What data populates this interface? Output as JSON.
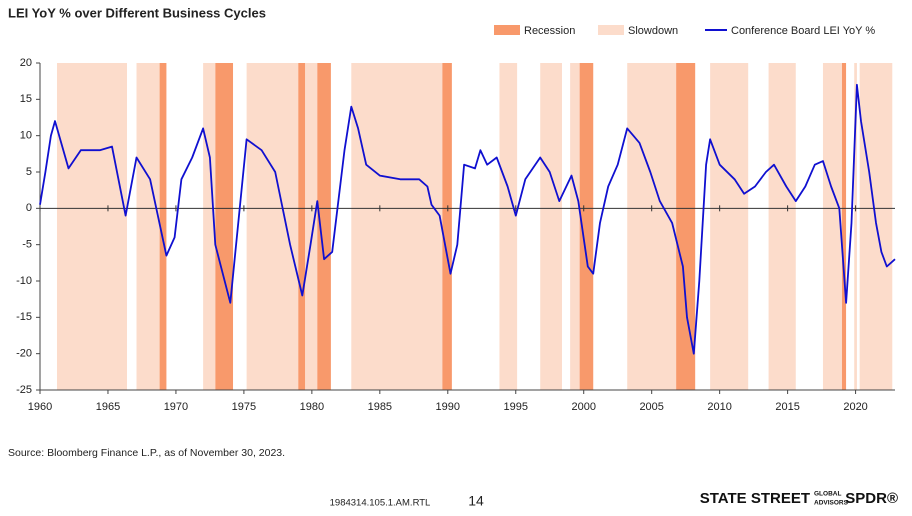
{
  "chart_data": {
    "type": "line",
    "title": "LEI YoY % over Different Business Cycles",
    "source": "Source: Bloomberg Finance L.P., as of November 30, 2023.",
    "xlim": [
      1960,
      2022.9
    ],
    "xticks": [
      1960,
      1965,
      1970,
      1975,
      1980,
      1985,
      1990,
      1995,
      2000,
      2005,
      2010,
      2015,
      2020
    ],
    "ylim": [
      -25,
      20
    ],
    "yticks": [
      -25,
      -20,
      -15,
      -10,
      -5,
      0,
      5,
      10,
      15,
      20
    ],
    "bands": [
      {
        "name": "Slowdown",
        "color": "#fcdccb",
        "ranges": [
          [
            1961.25,
            1966.4
          ],
          [
            1967.1,
            1968.8
          ],
          [
            1972.0,
            1972.9
          ],
          [
            1975.2,
            1979.0
          ],
          [
            1979.5,
            1980.4
          ],
          [
            1982.9,
            1989.6
          ],
          [
            1993.8,
            1995.1
          ],
          [
            1996.8,
            1998.4
          ],
          [
            1999.0,
            1999.7
          ],
          [
            2003.2,
            2006.8
          ],
          [
            2009.3,
            2012.1
          ],
          [
            2013.6,
            2015.6
          ],
          [
            2017.6,
            2019.0
          ],
          [
            2019.9,
            2020.1
          ],
          [
            2020.3,
            2022.7
          ]
        ]
      },
      {
        "name": "Recession",
        "color": "#f8996b",
        "ranges": [
          [
            1968.8,
            1969.3
          ],
          [
            1972.9,
            1974.2
          ],
          [
            1979.0,
            1979.5
          ],
          [
            1980.4,
            1981.4
          ],
          [
            1989.6,
            1990.3
          ],
          [
            1999.7,
            2000.7
          ],
          [
            2006.8,
            2008.2
          ],
          [
            2019.0,
            2019.3
          ]
        ]
      }
    ],
    "x": [
      1960.0,
      1960.4,
      1960.8,
      1961.1,
      1962.1,
      1963.0,
      1964.4,
      1965.3,
      1966.3,
      1967.1,
      1968.1,
      1969.3,
      1969.9,
      1970.4,
      1971.2,
      1972.0,
      1972.5,
      1972.9,
      1974.0,
      1975.2,
      1976.3,
      1977.3,
      1978.4,
      1979.3,
      1979.9,
      1980.4,
      1980.9,
      1981.5,
      1982.4,
      1982.9,
      1983.4,
      1984.0,
      1985.0,
      1986.5,
      1987.9,
      1988.5,
      1988.8,
      1989.4,
      1990.2,
      1990.7,
      1991.2,
      1992.0,
      1992.4,
      1992.9,
      1993.6,
      1994.4,
      1995.0,
      1995.7,
      1996.8,
      1997.5,
      1998.2,
      1999.1,
      1999.6,
      2000.3,
      2000.7,
      2001.2,
      2001.8,
      2002.5,
      2003.2,
      2004.1,
      2004.9,
      2005.6,
      2006.5,
      2007.3,
      2007.6,
      2008.1,
      2008.5,
      2009.0,
      2009.3,
      2010.0,
      2011.1,
      2011.8,
      2012.6,
      2013.4,
      2014.0,
      2014.9,
      2015.6,
      2016.3,
      2017.0,
      2017.6,
      2018.2,
      2018.8,
      2019.3,
      2019.7,
      2020.1,
      2020.4,
      2021.0,
      2021.5,
      2021.9,
      2022.3,
      2022.9
    ],
    "series": [
      {
        "name": "Conference Board LEI YoY %",
        "color": "#1010d0",
        "values": [
          0.5,
          5,
          10,
          12,
          5.5,
          8,
          8,
          8.5,
          -1,
          7,
          4,
          -6.5,
          -4,
          4,
          7,
          11,
          7,
          -5,
          -13,
          9.5,
          8,
          5,
          -5,
          -12,
          -5,
          1,
          -7,
          -6,
          8,
          14,
          11,
          6,
          4.5,
          4,
          4,
          3,
          0.5,
          -1,
          -9,
          -5,
          6,
          5.5,
          8,
          6,
          7,
          3,
          -1,
          4,
          7,
          5,
          1,
          4.5,
          1,
          -8,
          -9,
          -2,
          3,
          6,
          11,
          9,
          5,
          1,
          -2,
          -8,
          -15,
          -20,
          -10,
          6,
          9.5,
          6,
          4,
          2,
          3,
          5,
          6,
          3,
          1,
          3,
          6,
          6.5,
          3,
          0,
          -13,
          -2,
          17,
          12,
          5,
          -2,
          -6,
          -8,
          -7
        ]
      }
    ]
  },
  "footer": {
    "code": "1984314.105.1.AM.RTL",
    "page": "14",
    "logo": "STATE STREET",
    "logo_small_1": "GLOBAL",
    "logo_small_2": "ADVISORS",
    "logo_brand": "SPDR®"
  }
}
